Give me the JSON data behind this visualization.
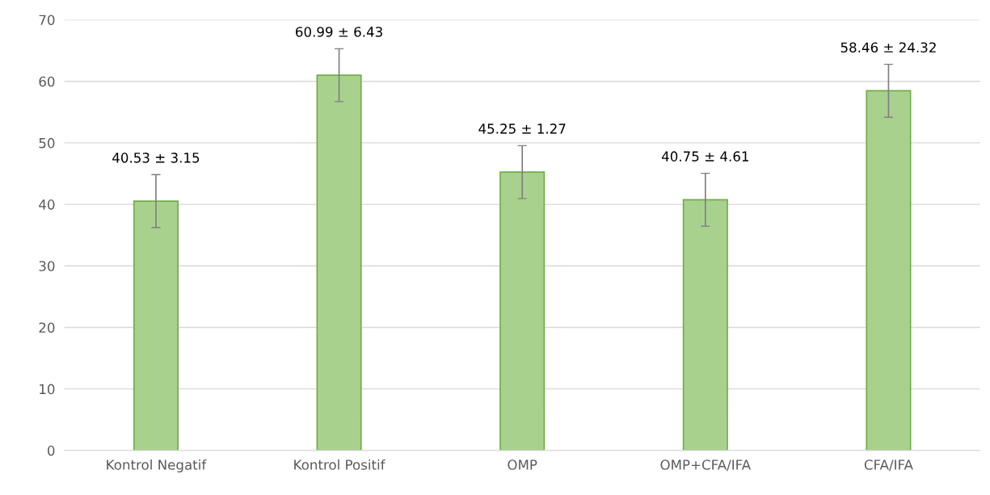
{
  "chart_data": {
    "type": "bar",
    "categories": [
      "Kontrol Negatif",
      "Kontrol Positif",
      "OMP",
      "OMP+CFA/IFA",
      "CFA/IFA"
    ],
    "values": [
      40.53,
      60.99,
      45.25,
      40.75,
      58.46
    ],
    "errors": [
      4.3,
      4.3,
      4.3,
      4.3,
      4.3
    ],
    "value_labels": [
      "40.53 ± 3.15",
      "60.99 ± 6.43",
      "45.25 ± 1.27",
      "40.75 ± 4.61",
      "58.46 ± 24.32"
    ],
    "color": "#a9d18e",
    "ylim": [
      0,
      70
    ],
    "yticks": [
      0,
      10,
      20,
      30,
      40,
      50,
      60,
      70
    ],
    "grid": "y"
  }
}
